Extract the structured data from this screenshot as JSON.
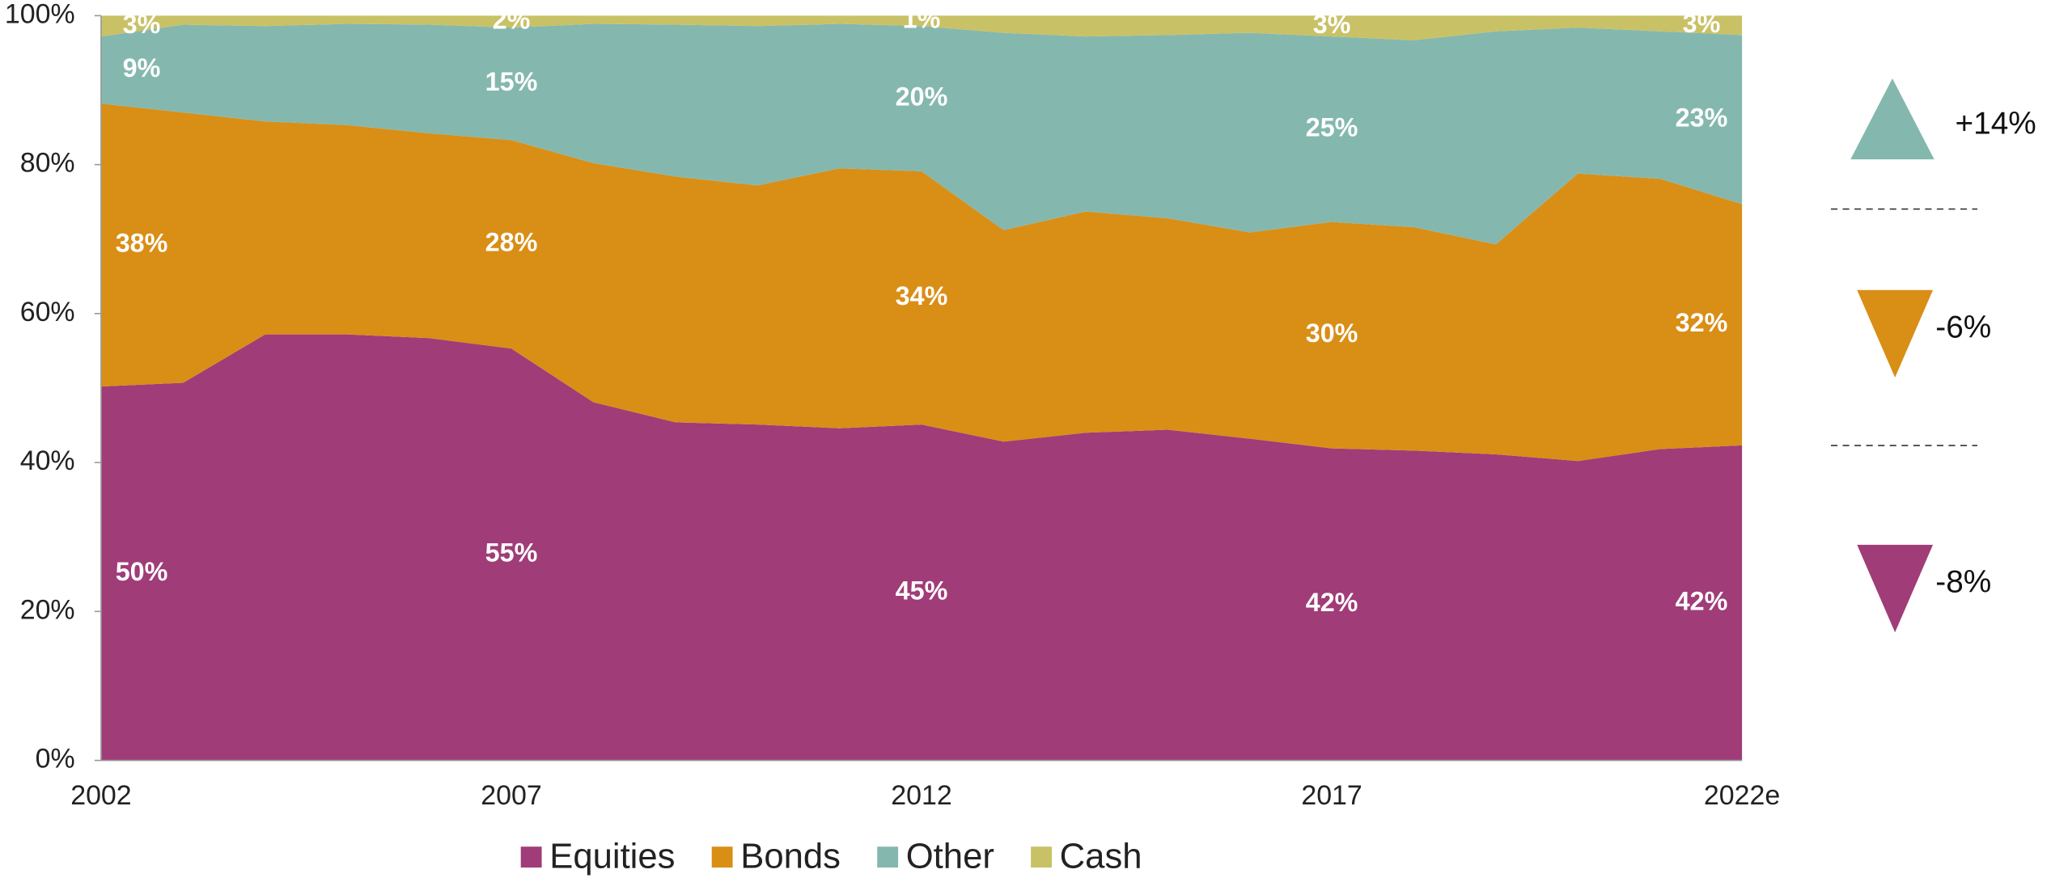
{
  "chart_data": {
    "type": "stacked_area",
    "categories": [
      "2002",
      null,
      null,
      null,
      null,
      "2007",
      null,
      null,
      null,
      null,
      "2012",
      null,
      null,
      null,
      null,
      "2017",
      null,
      null,
      null,
      null,
      "2022e"
    ],
    "series": [
      {
        "name": "Equities",
        "color": "#a03c78",
        "values": [
          50.2,
          50.7,
          57.2,
          57.2,
          56.7,
          55.3,
          48.1,
          45.4,
          45.1,
          44.6,
          45.1,
          42.8,
          44.0,
          44.4,
          43.2,
          41.9,
          41.6,
          41.1,
          40.2,
          41.8,
          42.3
        ],
        "value_labels": [
          "50%",
          null,
          null,
          null,
          null,
          "55%",
          null,
          null,
          null,
          null,
          "45%",
          null,
          null,
          null,
          null,
          "42%",
          null,
          null,
          null,
          null,
          "42%"
        ]
      },
      {
        "name": "Bonds",
        "color": "#d98e16",
        "values": [
          38.0,
          36.3,
          28.6,
          28.1,
          27.5,
          28.0,
          32.1,
          33.0,
          32.1,
          34.9,
          34.0,
          28.4,
          29.7,
          28.4,
          27.7,
          30.4,
          30.0,
          28.2,
          38.6,
          36.3,
          32.4
        ],
        "value_labels": [
          "38%",
          null,
          null,
          null,
          null,
          "28%",
          null,
          null,
          null,
          null,
          "34%",
          null,
          null,
          null,
          null,
          "30%",
          null,
          null,
          null,
          null,
          "32%"
        ]
      },
      {
        "name": "Other",
        "color": "#84b8ae",
        "values": [
          9.0,
          11.8,
          12.8,
          13.6,
          14.6,
          15.1,
          18.7,
          20.4,
          21.4,
          19.4,
          19.5,
          26.5,
          23.5,
          24.6,
          26.8,
          24.9,
          25.1,
          28.6,
          19.6,
          19.8,
          22.7
        ],
        "value_labels": [
          "9%",
          null,
          null,
          null,
          null,
          "15%",
          null,
          null,
          null,
          null,
          "20%",
          null,
          null,
          null,
          null,
          "25%",
          null,
          null,
          null,
          null,
          "23%"
        ]
      },
      {
        "name": "Cash",
        "color": "#c9c166",
        "values": [
          2.8,
          1.2,
          1.4,
          1.1,
          1.2,
          1.6,
          1.1,
          1.2,
          1.4,
          1.1,
          1.4,
          2.3,
          2.8,
          2.6,
          2.3,
          2.8,
          3.3,
          2.1,
          1.6,
          2.1,
          2.6
        ],
        "value_labels": [
          "3%",
          null,
          null,
          null,
          null,
          "2%",
          null,
          null,
          null,
          null,
          "1%",
          null,
          null,
          null,
          null,
          "3%",
          null,
          null,
          null,
          null,
          "3%"
        ]
      }
    ],
    "ylim": [
      0,
      100
    ],
    "yticks": [
      {
        "value": 0,
        "label": "0%"
      },
      {
        "value": 20,
        "label": "20%"
      },
      {
        "value": 40,
        "label": "40%"
      },
      {
        "value": 60,
        "label": "60%"
      },
      {
        "value": 80,
        "label": "80%"
      },
      {
        "value": 100,
        "label": "100%"
      }
    ],
    "legend": "bottom",
    "annotations": [
      {
        "text": "+14%",
        "color": "#84b8ae",
        "direction": "up"
      },
      {
        "text": "-6%",
        "color": "#d98e16",
        "direction": "down"
      },
      {
        "text": "-8%",
        "color": "#a03c78",
        "direction": "down"
      }
    ]
  }
}
